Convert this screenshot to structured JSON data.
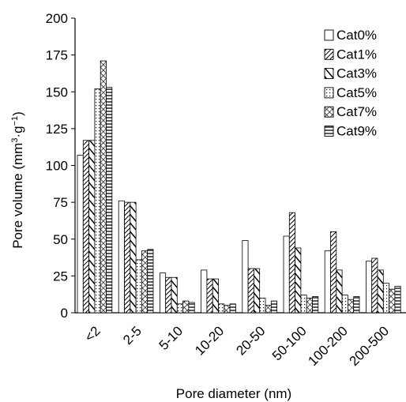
{
  "chart_data": {
    "type": "bar",
    "categories": [
      "<2",
      "2-5",
      "5-10",
      "10-20",
      "20-50",
      "50-100",
      "100-200",
      "200-500"
    ],
    "series": [
      {
        "name": "Cat0%",
        "pattern": "blank",
        "values": [
          107,
          76,
          27,
          29,
          49,
          52,
          42,
          35
        ]
      },
      {
        "name": "Cat1%",
        "pattern": "dense-diag",
        "values": [
          117,
          75,
          24,
          23,
          30,
          68,
          55,
          37
        ]
      },
      {
        "name": "Cat3%",
        "pattern": "wide-diag",
        "values": [
          117,
          75,
          24,
          23,
          30,
          44,
          29,
          29
        ]
      },
      {
        "name": "Cat5%",
        "pattern": "dots",
        "values": [
          152,
          36,
          6,
          6,
          10,
          12,
          12,
          20
        ]
      },
      {
        "name": "Cat7%",
        "pattern": "cross",
        "values": [
          171,
          42,
          8,
          5,
          5,
          10,
          9,
          16
        ]
      },
      {
        "name": "Cat9%",
        "pattern": "horizontal",
        "values": [
          153,
          43,
          7,
          6,
          8,
          11,
          11,
          18
        ]
      }
    ],
    "xlabel": "Pore diameter (nm)",
    "ylabel": {
      "prefix": "Pore volume (mm",
      "sup1": "3",
      "mid": "·g",
      "sup2": "−1",
      "suffix": ")"
    },
    "ylim": [
      0,
      200
    ],
    "yticks": [
      0,
      25,
      50,
      75,
      100,
      125,
      150,
      175,
      200
    ],
    "grid": false,
    "legend_position": "top-right"
  }
}
